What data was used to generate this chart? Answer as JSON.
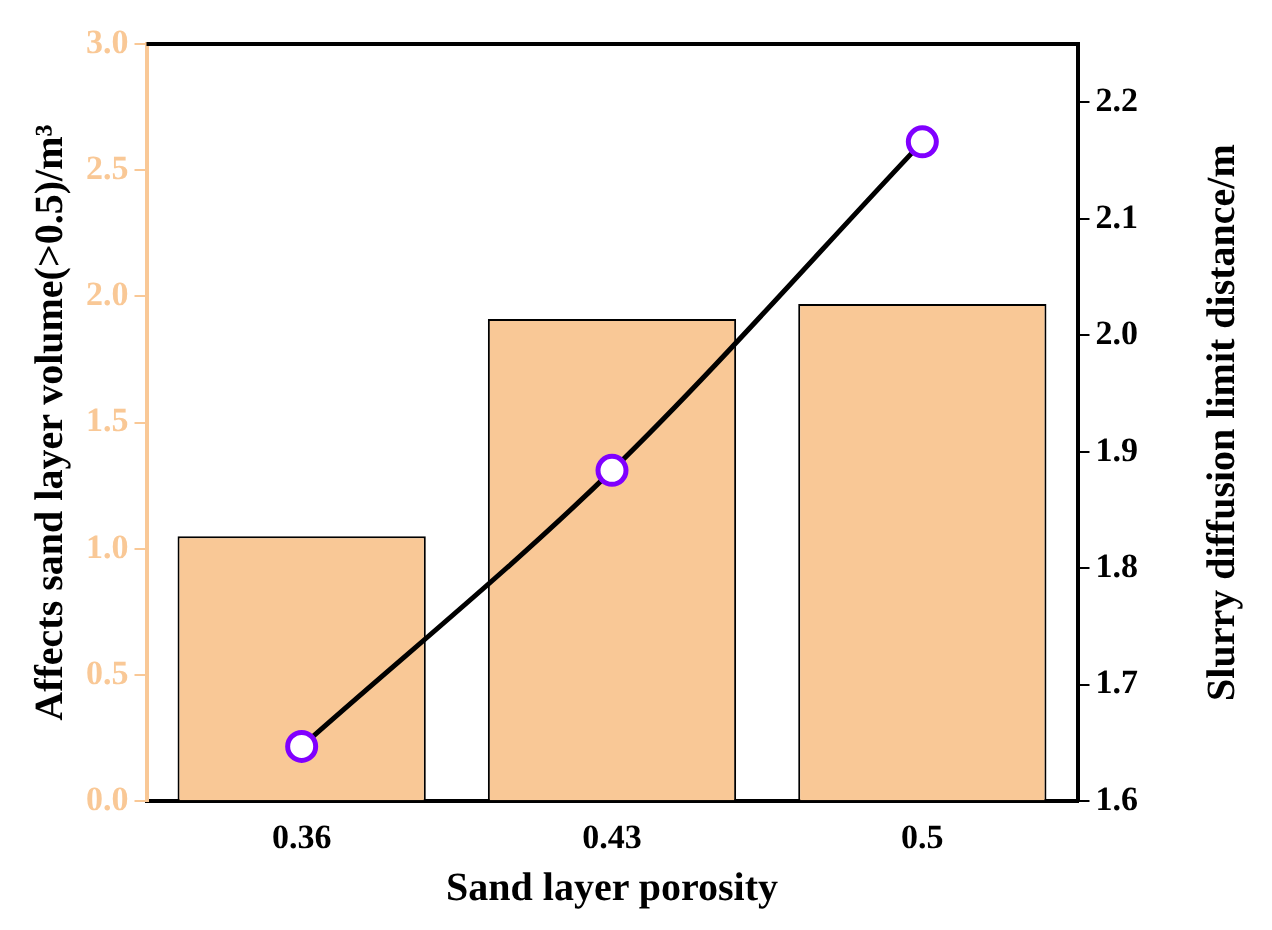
{
  "chart_data": {
    "type": "bar",
    "xlabel": "Sand layer porosity",
    "ylabel": "Affects sand layer volume(>0.5)/m³",
    "y2label": "Slurry diffusion limit distance/m",
    "categories": [
      "0.36",
      "0.43",
      "0.5"
    ],
    "series": [
      {
        "color": "#f9c896",
        "values": [
          1.05,
          1.91,
          1.97
        ]
      },
      {
        "type": "line",
        "axis": "y2",
        "color": "#000000",
        "marker": "circle",
        "values": [
          1.647,
          1.884,
          2.166
        ]
      }
    ],
    "ylim": [
      0,
      3
    ],
    "yticks": [
      {
        "value": 0,
        "label": "0.0"
      },
      0.5,
      {
        "value": 1,
        "label": "1.0"
      },
      1.5,
      {
        "value": 2,
        "label": "2.0"
      },
      2.5,
      {
        "value": 3,
        "label": "3.0"
      }
    ],
    "y2lim": [
      1.6,
      2.25
    ],
    "y2ticks": [
      1.6,
      1.7,
      1.8,
      1.9,
      {
        "value": 2,
        "label": "2.0"
      },
      2.1,
      2.2
    ],
    "grid": false,
    "legend": false
  }
}
